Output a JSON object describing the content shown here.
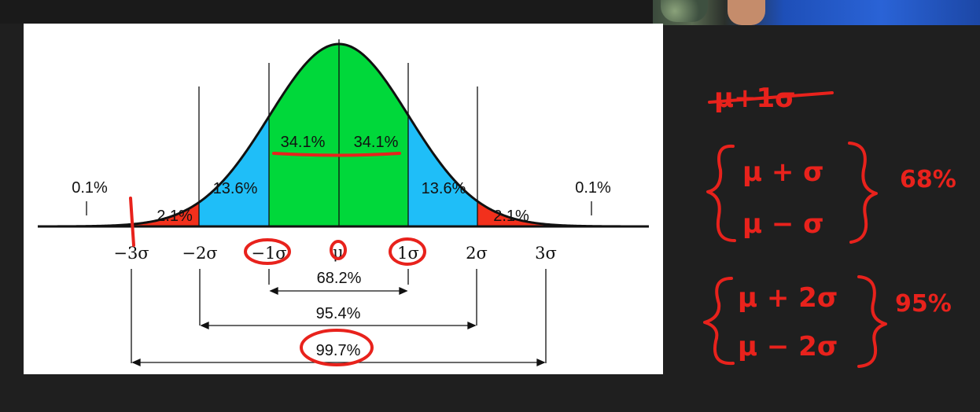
{
  "webcam": {
    "label": "presenter-webcam"
  },
  "slide": {
    "region_percents": {
      "center_left": "34.1%",
      "center_right": "34.1%",
      "mid_left": "13.6%",
      "mid_right": "13.6%",
      "outer_left": "2.1%",
      "outer_right": "2.1%",
      "tail_left": "0.1%",
      "tail_right": "0.1%"
    },
    "axis_ticks": [
      "−3σ",
      "−2σ",
      "−1σ",
      "μ",
      "1σ",
      "2σ",
      "3σ"
    ],
    "ranges": {
      "one_sigma": "68.2%",
      "two_sigma": "95.4%",
      "three_sigma": "99.7%"
    },
    "colors": {
      "center": "#00d83a",
      "mid": "#1fbef8",
      "outer": "#f2301c",
      "curve": "#111111"
    }
  },
  "board": {
    "line1": "μ+1σ",
    "set1_top": "μ + σ",
    "set1_bottom": "μ − σ",
    "set1_pct": "68%",
    "set2_top": "μ + 2σ",
    "set2_bottom": "μ − 2σ",
    "set2_pct": "95%"
  }
}
